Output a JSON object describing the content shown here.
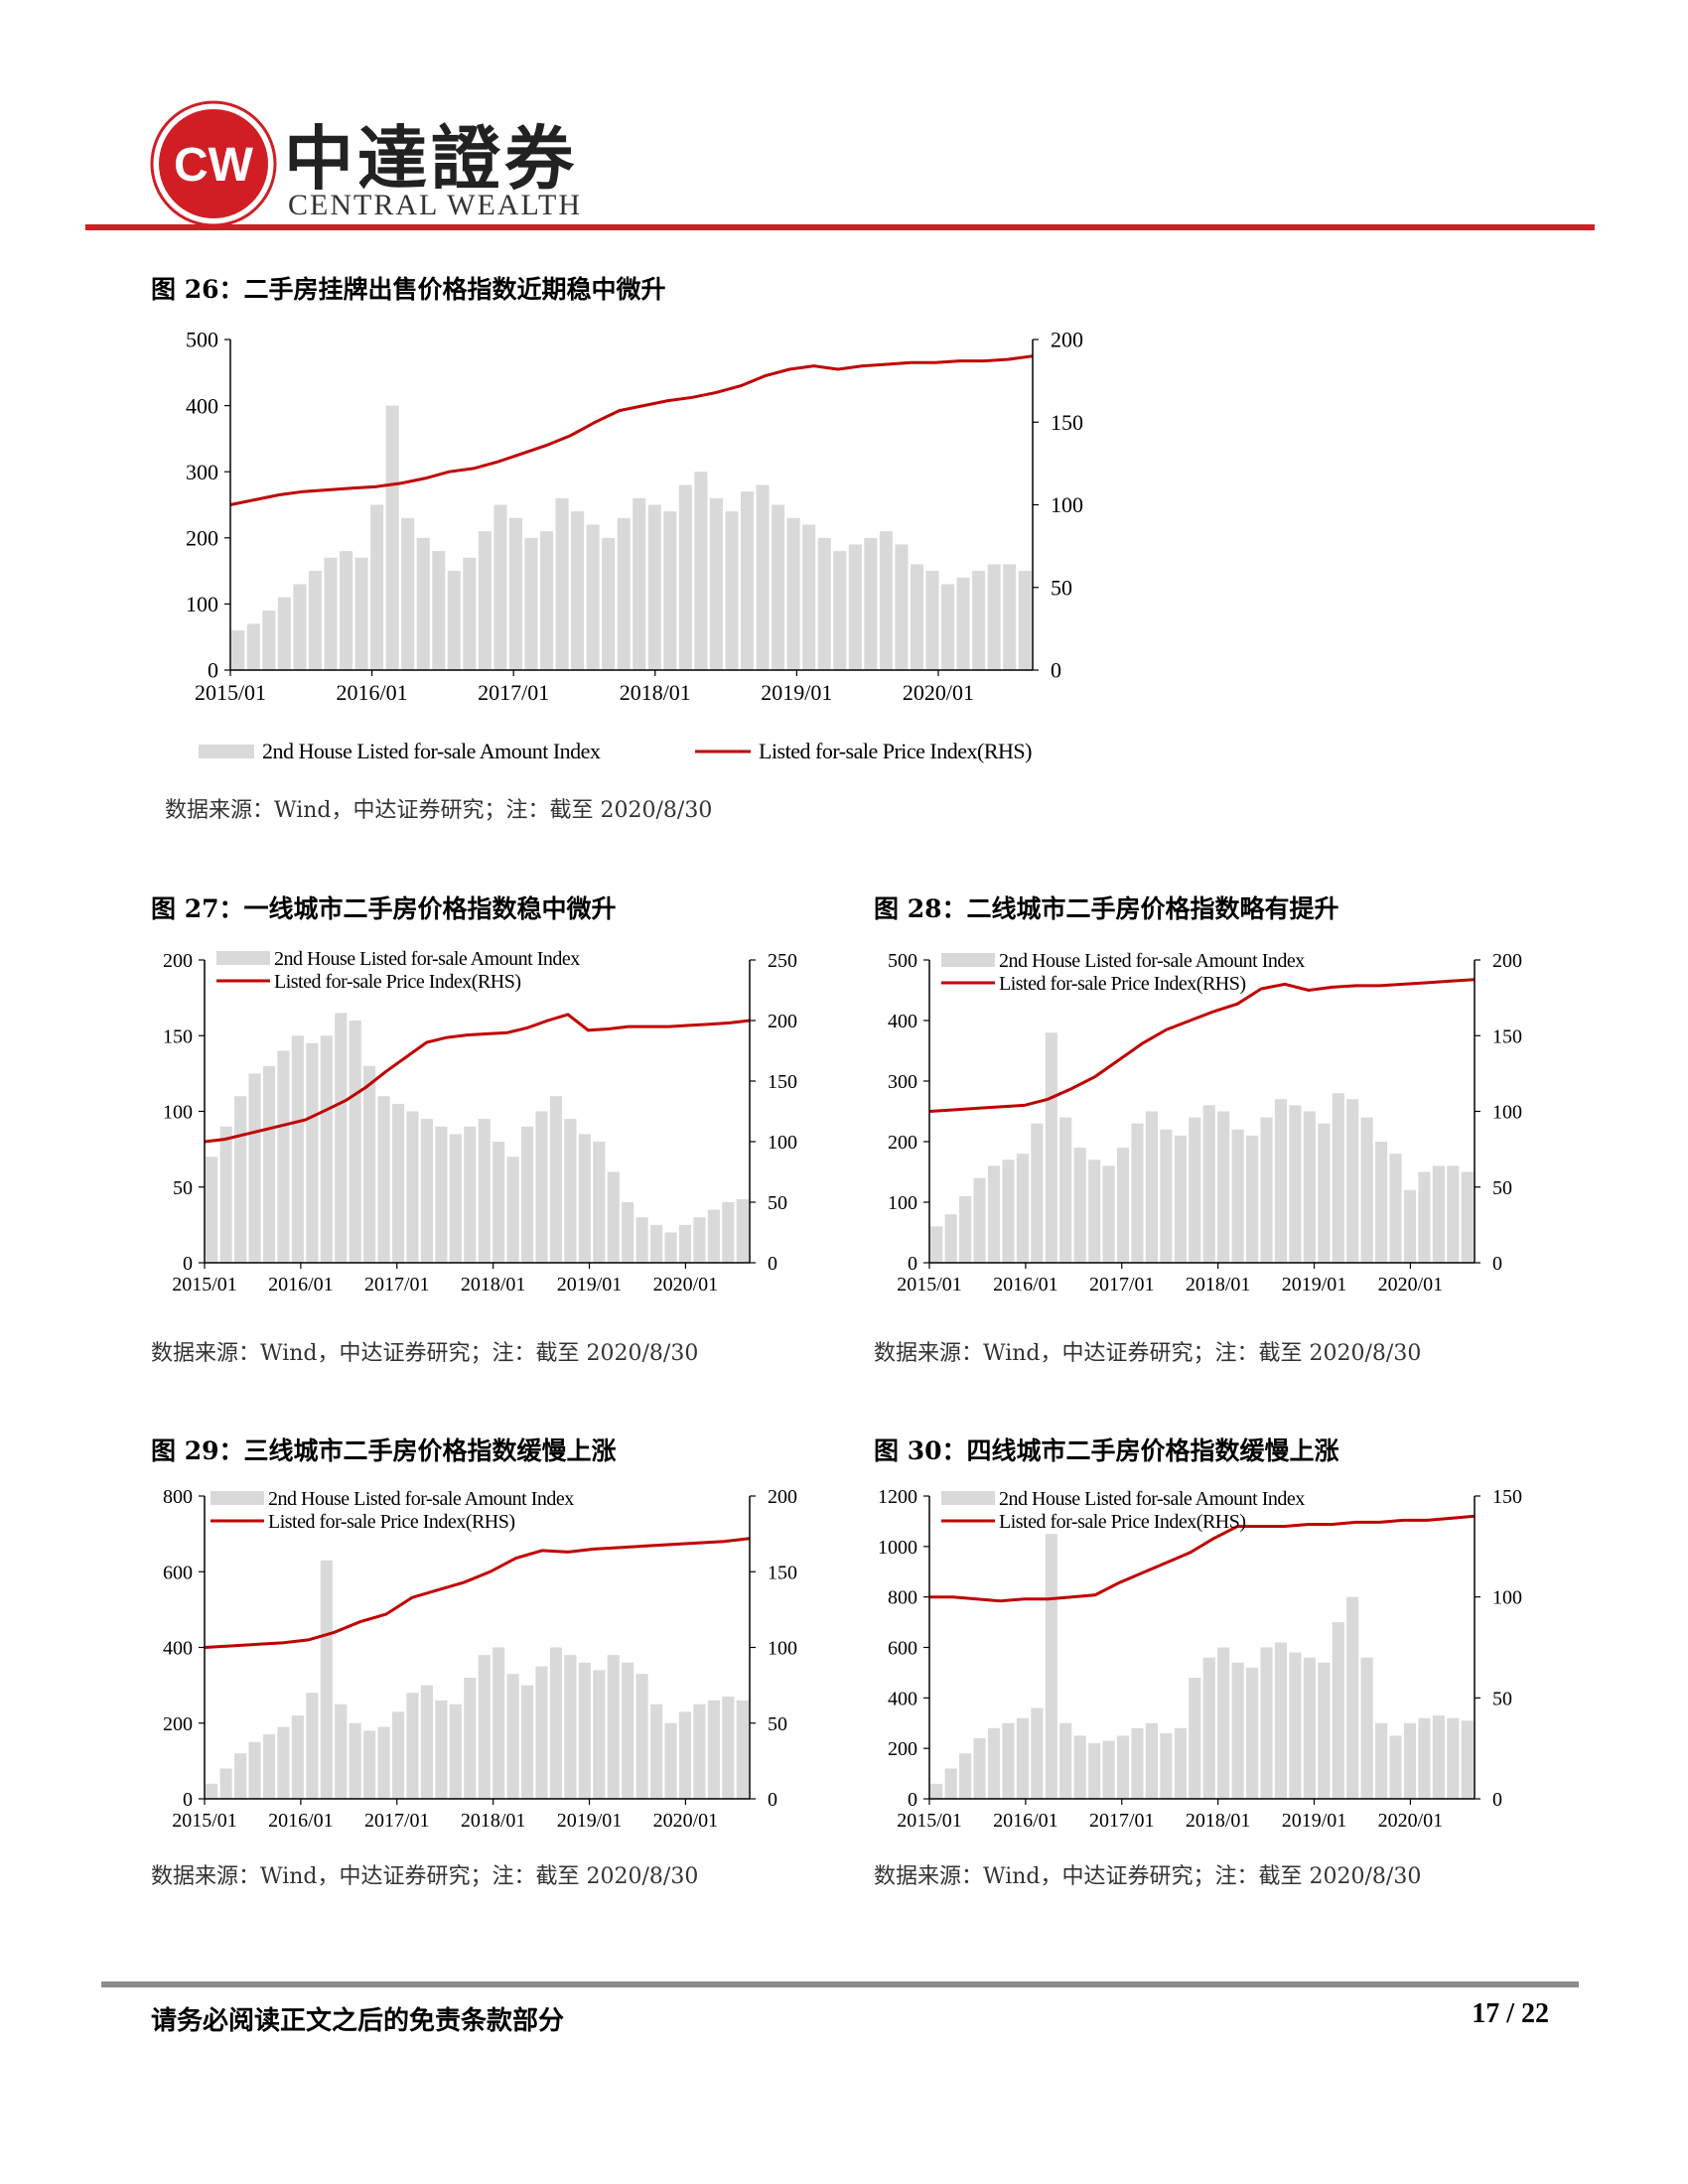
{
  "header": {
    "logo_mark": "CW",
    "brand_cn": "中達證券",
    "brand_en": "CENTRAL WEALTH",
    "accent_color": "#d01e24"
  },
  "figures": [
    {
      "title": "图 26：二手房挂牌出售价格指数近期稳中微升",
      "source": "数据来源：Wind，中达证券研究；注：截至 2020/8/30",
      "chart_data": {
        "type": "bar+line",
        "x_ticks": [
          "2015/01",
          "2016/01",
          "2017/01",
          "2018/01",
          "2019/01",
          "2020/01"
        ],
        "y_left": {
          "min": 0,
          "max": 500,
          "ticks": [
            "0",
            "100",
            "200",
            "300",
            "400",
            "500"
          ]
        },
        "y_right": {
          "min": 0,
          "max": 200,
          "ticks": [
            "0",
            "50",
            "100",
            "150",
            "200"
          ]
        },
        "legend_position": "bottom",
        "series": [
          {
            "name": "2nd House Listed for-sale Amount Index",
            "type": "bar",
            "axis": "left",
            "color": "#d9d9d9",
            "values": [
              60,
              70,
              90,
              110,
              130,
              150,
              170,
              180,
              170,
              250,
              400,
              230,
              200,
              180,
              150,
              170,
              210,
              250,
              230,
              200,
              210,
              260,
              240,
              220,
              200,
              230,
              260,
              250,
              240,
              280,
              300,
              260,
              240,
              270,
              280,
              250,
              230,
              220,
              200,
              180,
              190,
              200,
              210,
              190,
              160,
              150,
              130,
              140,
              150,
              160,
              160,
              150
            ]
          },
          {
            "name": "Listed for-sale Price Index(RHS)",
            "type": "line",
            "axis": "right",
            "color": "#c00000",
            "values": [
              100,
              103,
              106,
              108,
              109,
              110,
              111,
              113,
              116,
              120,
              122,
              126,
              131,
              136,
              142,
              150,
              157,
              160,
              163,
              165,
              168,
              172,
              178,
              182,
              184,
              182,
              184,
              185,
              186,
              186,
              187,
              187,
              188,
              190
            ]
          }
        ]
      }
    },
    {
      "title": "图 27：一线城市二手房价格指数稳中微升",
      "source": "数据来源：Wind，中达证券研究；注：截至 2020/8/30",
      "chart_data": {
        "type": "bar+line",
        "x_ticks": [
          "2015/01",
          "2016/01",
          "2017/01",
          "2018/01",
          "2019/01",
          "2020/01"
        ],
        "y_left": {
          "min": 0,
          "max": 200,
          "ticks": [
            "0",
            "50",
            "100",
            "150",
            "200"
          ]
        },
        "y_right": {
          "min": 0,
          "max": 250,
          "ticks": [
            "0",
            "50",
            "100",
            "150",
            "200",
            "250"
          ]
        },
        "legend_position": "top-left",
        "series": [
          {
            "name": "2nd House Listed for-sale Amount Index",
            "type": "bar",
            "axis": "left",
            "color": "#d9d9d9",
            "values": [
              70,
              90,
              110,
              125,
              130,
              140,
              150,
              145,
              150,
              165,
              160,
              130,
              110,
              105,
              100,
              95,
              90,
              85,
              90,
              95,
              80,
              70,
              90,
              100,
              110,
              95,
              85,
              80,
              60,
              40,
              30,
              25,
              20,
              25,
              30,
              35,
              40,
              42
            ]
          },
          {
            "name": "Listed for-sale Price Index(RHS)",
            "type": "line",
            "axis": "right",
            "color": "#c00000",
            "values": [
              100,
              102,
              106,
              110,
              114,
              118,
              126,
              134,
              145,
              158,
              170,
              182,
              186,
              188,
              189,
              190,
              194,
              200,
              205,
              192,
              193,
              195,
              195,
              195,
              196,
              197,
              198,
              200
            ]
          }
        ]
      }
    },
    {
      "title": "图 28：二线城市二手房价格指数略有提升",
      "source": "数据来源：Wind，中达证券研究；注：截至 2020/8/30",
      "chart_data": {
        "type": "bar+line",
        "x_ticks": [
          "2015/01",
          "2016/01",
          "2017/01",
          "2018/01",
          "2019/01",
          "2020/01"
        ],
        "y_left": {
          "min": 0,
          "max": 500,
          "ticks": [
            "0",
            "100",
            "200",
            "300",
            "400",
            "500"
          ]
        },
        "y_right": {
          "min": 0,
          "max": 200,
          "ticks": [
            "0",
            "50",
            "100",
            "150",
            "200"
          ]
        },
        "legend_position": "top-left",
        "series": [
          {
            "name": "2nd House Listed for-sale Amount Index",
            "type": "bar",
            "axis": "left",
            "color": "#d9d9d9",
            "values": [
              60,
              80,
              110,
              140,
              160,
              170,
              180,
              230,
              380,
              240,
              190,
              170,
              160,
              190,
              230,
              250,
              220,
              210,
              240,
              260,
              250,
              220,
              210,
              240,
              270,
              260,
              250,
              230,
              280,
              270,
              240,
              200,
              180,
              120,
              150,
              160,
              160,
              150
            ]
          },
          {
            "name": "Listed for-sale Price Index(RHS)",
            "type": "line",
            "axis": "right",
            "color": "#c00000",
            "values": [
              100,
              101,
              102,
              103,
              104,
              108,
              115,
              123,
              134,
              145,
              154,
              160,
              166,
              171,
              181,
              184,
              180,
              182,
              183,
              183,
              184,
              185,
              186,
              187
            ]
          }
        ]
      }
    },
    {
      "title": "图 29：三线城市二手房价格指数缓慢上涨",
      "source": "数据来源：Wind，中达证券研究；注：截至 2020/8/30",
      "chart_data": {
        "type": "bar+line",
        "x_ticks": [
          "2015/01",
          "2016/01",
          "2017/01",
          "2018/01",
          "2019/01",
          "2020/01"
        ],
        "y_left": {
          "min": 0,
          "max": 800,
          "ticks": [
            "0",
            "200",
            "400",
            "600",
            "800"
          ]
        },
        "y_right": {
          "min": 0,
          "max": 200,
          "ticks": [
            "0",
            "50",
            "100",
            "150",
            "200"
          ]
        },
        "legend_position": "top-left",
        "series": [
          {
            "name": "2nd House Listed for-sale Amount Index",
            "type": "bar",
            "axis": "left",
            "color": "#d9d9d9",
            "values": [
              40,
              80,
              120,
              150,
              170,
              190,
              220,
              280,
              630,
              250,
              200,
              180,
              190,
              230,
              280,
              300,
              260,
              250,
              320,
              380,
              400,
              330,
              300,
              350,
              400,
              380,
              360,
              340,
              380,
              360,
              330,
              250,
              200,
              230,
              250,
              260,
              270,
              260
            ]
          },
          {
            "name": "Listed for-sale Price Index(RHS)",
            "type": "line",
            "axis": "right",
            "color": "#c00000",
            "values": [
              100,
              101,
              102,
              103,
              105,
              110,
              117,
              122,
              133,
              138,
              143,
              150,
              159,
              164,
              163,
              165,
              166,
              167,
              168,
              169,
              170,
              172
            ]
          }
        ]
      }
    },
    {
      "title": "图 30：四线城市二手房价格指数缓慢上涨",
      "source": "数据来源：Wind，中达证券研究；注：截至 2020/8/30",
      "chart_data": {
        "type": "bar+line",
        "x_ticks": [
          "2015/01",
          "2016/01",
          "2017/01",
          "2018/01",
          "2019/01",
          "2020/01"
        ],
        "y_left": {
          "min": 0,
          "max": 1200,
          "ticks": [
            "0",
            "200",
            "400",
            "600",
            "800",
            "1000",
            "1200"
          ]
        },
        "y_right": {
          "min": 0,
          "max": 150,
          "ticks": [
            "0",
            "50",
            "100",
            "150"
          ]
        },
        "legend_position": "top-left",
        "series": [
          {
            "name": "2nd House Listed for-sale Amount Index",
            "type": "bar",
            "axis": "left",
            "color": "#d9d9d9",
            "values": [
              60,
              120,
              180,
              240,
              280,
              300,
              320,
              360,
              1050,
              300,
              250,
              220,
              230,
              250,
              280,
              300,
              260,
              280,
              480,
              560,
              600,
              540,
              520,
              600,
              620,
              580,
              560,
              540,
              700,
              800,
              560,
              300,
              250,
              300,
              320,
              330,
              320,
              310
            ]
          },
          {
            "name": "Listed for-sale Price Index(RHS)",
            "type": "line",
            "axis": "right",
            "color": "#c00000",
            "values": [
              100,
              100,
              99,
              98,
              99,
              99,
              100,
              101,
              107,
              112,
              117,
              122,
              129,
              135,
              135,
              135,
              136,
              136,
              137,
              137,
              138,
              138,
              139,
              140
            ]
          }
        ]
      }
    }
  ],
  "footer": {
    "note": "请务必阅读正文之后的免责条款部分",
    "page": "17 / 22"
  }
}
